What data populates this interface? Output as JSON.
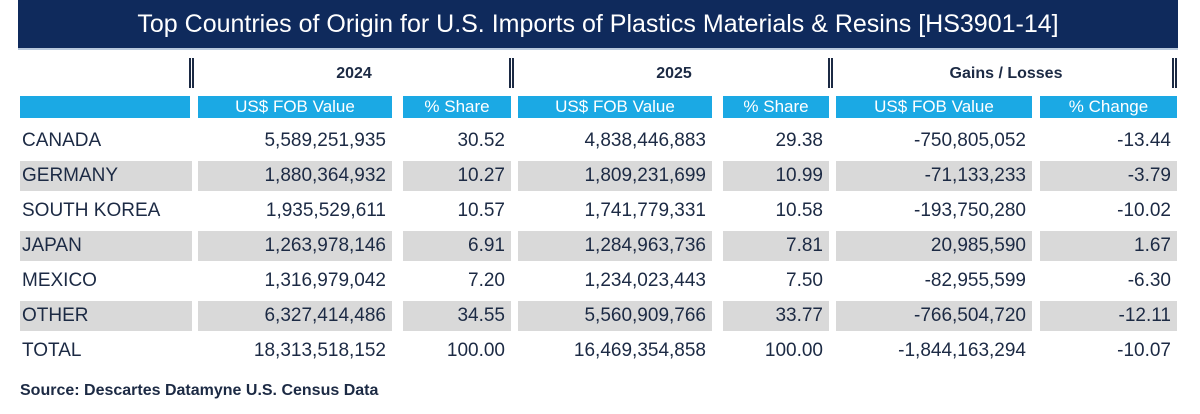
{
  "title": "Top Countries of Origin for U.S. Imports of  Plastics Materials & Resins [HS3901-14]",
  "groups": [
    "2024",
    "2025",
    "Gains / Losses"
  ],
  "columns": [
    "US$ FOB Value",
    "% Share",
    "US$ FOB Value",
    "% Share",
    "US$ FOB Value",
    "% Change"
  ],
  "rows": [
    [
      "CANADA",
      "5,589,251,935",
      "30.52",
      "4,838,446,883",
      "29.38",
      "-750,805,052",
      "-13.44"
    ],
    [
      "GERMANY",
      "1,880,364,932",
      "10.27",
      "1,809,231,699",
      "10.99",
      "-71,133,233",
      "-3.79"
    ],
    [
      "SOUTH KOREA",
      "1,935,529,611",
      "10.57",
      "1,741,779,331",
      "10.58",
      "-193,750,280",
      "-10.02"
    ],
    [
      "JAPAN",
      "1,263,978,146",
      "6.91",
      "1,284,963,736",
      "7.81",
      "20,985,590",
      "1.67"
    ],
    [
      "MEXICO",
      "1,316,979,042",
      "7.20",
      "1,234,023,443",
      "7.50",
      "-82,955,599",
      "-6.30"
    ],
    [
      "OTHER",
      "6,327,414,486",
      "34.55",
      "5,560,909,766",
      "33.77",
      "-766,504,720",
      "-12.11"
    ],
    [
      "TOTAL",
      "18,313,518,152",
      "100.00",
      "16,469,354,858",
      "100.00",
      "-1,844,163,294",
      "-10.07"
    ]
  ],
  "source": "Source: Descartes Datamyne U.S. Census Data",
  "colors": {
    "title_bg": "#0f2a5c",
    "header_bg": "#1ba9e4",
    "band": "#d9d9d9"
  }
}
